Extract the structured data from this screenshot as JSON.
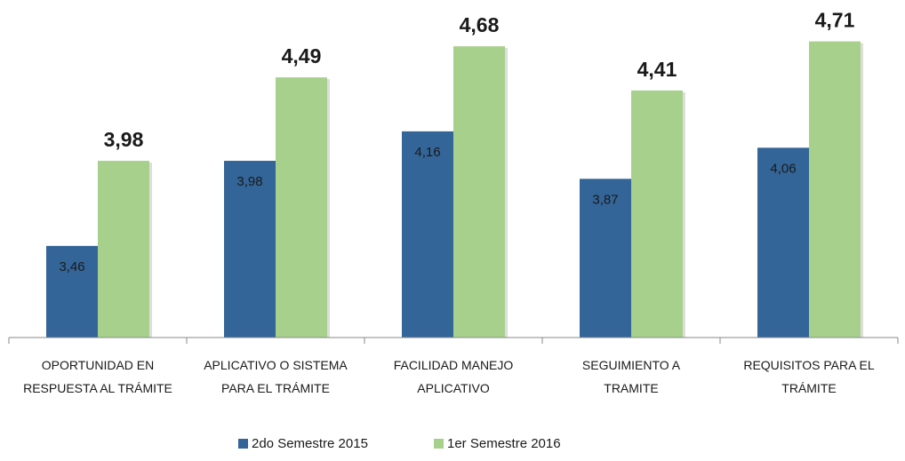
{
  "chart_data": {
    "type": "bar",
    "categories": [
      "OPORTUNIDAD EN RESPUESTA AL TRÁMITE",
      "APLICATIVO O SISTEMA PARA EL TRÁMITE",
      "FACILIDAD MANEJO APLICATIVO",
      "SEGUIMIENTO A TRAMITE",
      "REQUISITOS PARA EL TRÁMITE"
    ],
    "series": [
      {
        "name": "2do Semestre 2015",
        "color": "#336598",
        "values": [
          3.46,
          3.98,
          4.16,
          3.87,
          4.06
        ],
        "value_labels": [
          "3,46",
          "3,98",
          "4,16",
          "3,87",
          "4,06"
        ]
      },
      {
        "name": "1er Semestre 2016",
        "color": "#a7d08d",
        "values": [
          3.98,
          4.49,
          4.68,
          4.41,
          4.71
        ],
        "value_labels": [
          "3,98",
          "4,49",
          "4,68",
          "4,41",
          "4,71"
        ]
      }
    ],
    "ylim": [
      2.9,
      4.8
    ],
    "legend": "bottom"
  }
}
